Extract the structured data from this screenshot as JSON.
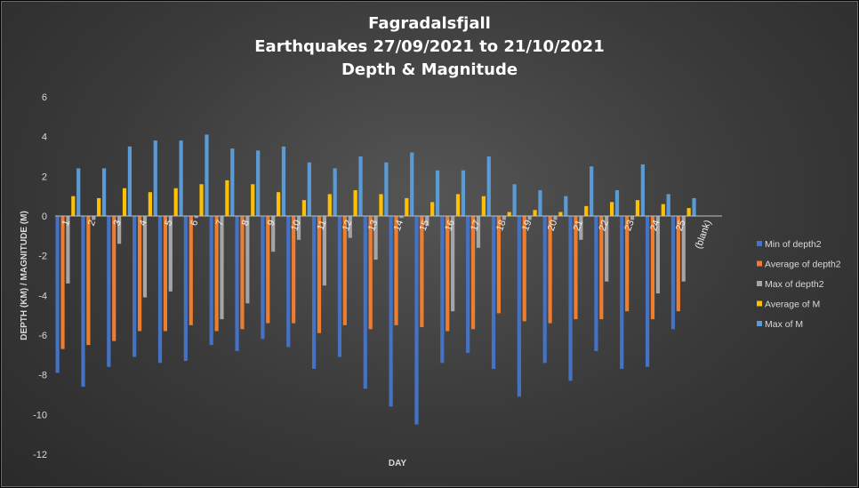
{
  "chart_data": {
    "type": "bar",
    "title_lines": [
      "Fagradalsfjall",
      "Earthquakes 27/09/2021 to 21/10/2021",
      "Depth & Magnitude"
    ],
    "xlabel": "DAY",
    "ylabel": "DEPTH (KM) / MAGNITUDE (M)",
    "ylim": [
      -12,
      6
    ],
    "yticks": [
      6,
      4,
      2,
      0,
      -2,
      -4,
      -6,
      -8,
      -10,
      -12
    ],
    "grid": false,
    "legend_position": "right",
    "categories": [
      "1",
      "2",
      "3",
      "4",
      "5",
      "6",
      "7",
      "8",
      "9",
      "10",
      "11",
      "12",
      "13",
      "14",
      "15",
      "16",
      "17",
      "18",
      "19",
      "20",
      "21",
      "22",
      "23",
      "24",
      "25",
      "(blank)"
    ],
    "series": [
      {
        "name": "Min of depth2",
        "color": "#4472c4",
        "values": [
          -7.9,
          -8.6,
          -7.6,
          -7.1,
          -7.4,
          -7.3,
          -6.5,
          -6.8,
          -6.2,
          -6.6,
          -7.7,
          -7.1,
          -8.7,
          -9.6,
          -10.5,
          -7.4,
          -6.9,
          -7.7,
          -9.1,
          -7.4,
          -8.3,
          -6.8,
          -7.7,
          -7.6,
          -5.7,
          null
        ]
      },
      {
        "name": "Average of depth2",
        "color": "#ed7d31",
        "values": [
          -6.7,
          -6.5,
          -6.3,
          -5.8,
          -5.8,
          -5.5,
          -5.8,
          -5.7,
          -5.4,
          -5.4,
          -5.9,
          -5.5,
          -5.7,
          -5.5,
          -5.6,
          -5.8,
          -5.7,
          -4.9,
          -5.3,
          -5.4,
          -5.2,
          -5.2,
          -4.8,
          -5.2,
          -4.8,
          null
        ]
      },
      {
        "name": "Max of depth2",
        "color": "#a5a5a5",
        "values": [
          -3.4,
          -0.2,
          -1.4,
          -4.1,
          -3.8,
          -0.1,
          -5.2,
          -4.4,
          -1.8,
          -1.2,
          -3.5,
          -1.1,
          -2.2,
          -0.1,
          -0.5,
          -4.8,
          -1.6,
          -0.2,
          -0.2,
          -0.2,
          -1.2,
          -3.3,
          -0.2,
          -3.9,
          -3.3,
          null
        ]
      },
      {
        "name": "Average of M",
        "color": "#ffc000",
        "values": [
          1.0,
          0.9,
          1.4,
          1.2,
          1.4,
          1.6,
          1.8,
          1.6,
          1.2,
          0.8,
          1.1,
          1.3,
          1.1,
          0.9,
          0.7,
          1.1,
          1.0,
          0.2,
          0.3,
          0.2,
          0.5,
          0.7,
          0.8,
          0.6,
          0.4,
          null
        ]
      },
      {
        "name": "Max of M",
        "color": "#5b9bd5",
        "values": [
          2.4,
          2.4,
          3.5,
          3.8,
          3.8,
          4.1,
          3.4,
          3.3,
          3.5,
          2.7,
          2.4,
          3.0,
          2.7,
          3.2,
          2.3,
          2.3,
          3.0,
          1.6,
          1.3,
          1.0,
          2.5,
          1.3,
          2.6,
          1.1,
          0.9,
          null
        ]
      }
    ]
  }
}
